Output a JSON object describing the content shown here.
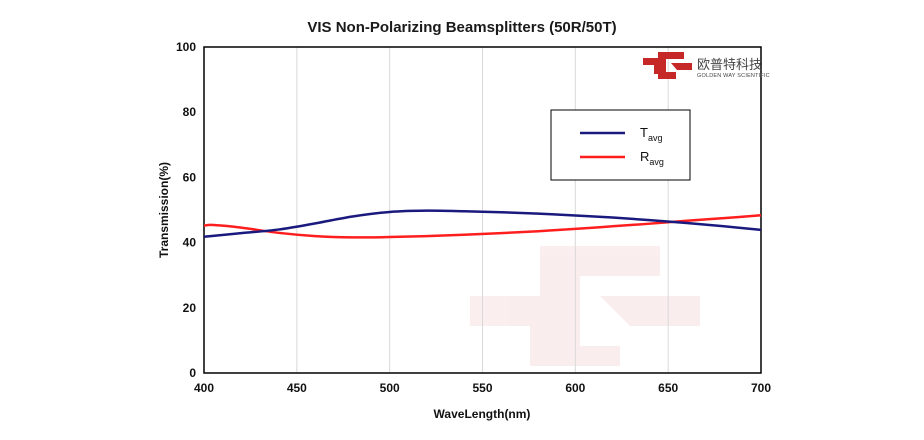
{
  "chart_data": {
    "type": "line",
    "title": "VIS Non-Polarizing Beamsplitters  (50R/50T)",
    "xlabel": "WaveLength(nm)",
    "ylabel": "Transmission(%)",
    "xlim": [
      400,
      700
    ],
    "ylim": [
      0,
      100
    ],
    "xticks": [
      400,
      450,
      500,
      550,
      600,
      650,
      700
    ],
    "yticks": [
      0,
      20,
      40,
      60,
      80,
      100
    ],
    "grid": "vertical",
    "legend_position": "top-right",
    "series": [
      {
        "name": "Tavg",
        "label_main": "T",
        "label_sub": "avg",
        "color": "#1a1a7e",
        "x": [
          400,
          420,
          440,
          460,
          480,
          500,
          520,
          540,
          560,
          580,
          600,
          620,
          640,
          660,
          680,
          700
        ],
        "y": [
          41.8,
          42.9,
          44.0,
          45.9,
          48.0,
          49.4,
          49.8,
          49.6,
          49.3,
          48.9,
          48.3,
          47.7,
          46.9,
          46.0,
          45.0,
          43.9
        ]
      },
      {
        "name": "Ravg",
        "label_main": "R",
        "label_sub": "avg",
        "color": "#ff1e1e",
        "x": [
          400,
          405,
          420,
          440,
          460,
          480,
          500,
          520,
          540,
          560,
          580,
          600,
          620,
          640,
          660,
          680,
          700
        ],
        "y": [
          45.2,
          45.4,
          44.6,
          43.0,
          42.0,
          41.6,
          41.7,
          42.0,
          42.4,
          42.9,
          43.5,
          44.2,
          45.0,
          45.8,
          46.7,
          47.5,
          48.4
        ]
      }
    ]
  },
  "logo": {
    "name_cn": "欧普特科技",
    "name_en": "GOLDEN WAY SCIENTIFIC",
    "color": "#c62828"
  }
}
